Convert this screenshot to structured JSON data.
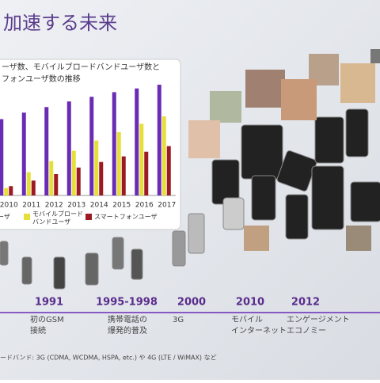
{
  "slide": {
    "title": "加速する未来",
    "timeline": [
      {
        "year": "1991",
        "label": [
          "初のGSM",
          "接続"
        ]
      },
      {
        "year": "1995-1998",
        "label": [
          "携帯電話の",
          "爆発的普及"
        ]
      },
      {
        "year": "2000",
        "label": [
          "3G"
        ]
      },
      {
        "year": "2010",
        "label": [
          "モバイル",
          "インターネット"
        ]
      },
      {
        "year": "2012",
        "label": [
          "エンゲージメント",
          "エコノミー"
        ]
      }
    ],
    "footnote": "ードバンド: 3G (CDMA, WCDMA, HSPA, etc.) や 4G (LTE / WiMAX) など"
  },
  "chart_data": {
    "type": "bar",
    "title": [
      "ーザ数、モバイルブロードバンドユーザ数と",
      "フォンユーザ数の推移"
    ],
    "categories": [
      "2010",
      "2011",
      "2012",
      "2013",
      "2014",
      "2015",
      "2016",
      "2017"
    ],
    "series": [
      {
        "name": "ーザ",
        "color": "#6a2bb5",
        "values": [
          82,
          89,
          95,
          101,
          106,
          111,
          115,
          119
        ]
      },
      {
        "name": "モバイルブロード バンドユーザ",
        "color": "#e6df3a",
        "values": [
          8,
          25,
          37,
          48,
          59,
          68,
          77,
          85
        ]
      },
      {
        "name": "スマートフォンユーザ",
        "color": "#9c1b22",
        "values": [
          10,
          16,
          23,
          30,
          36,
          42,
          47,
          53
        ]
      }
    ],
    "ylim": [
      0,
      125
    ]
  }
}
